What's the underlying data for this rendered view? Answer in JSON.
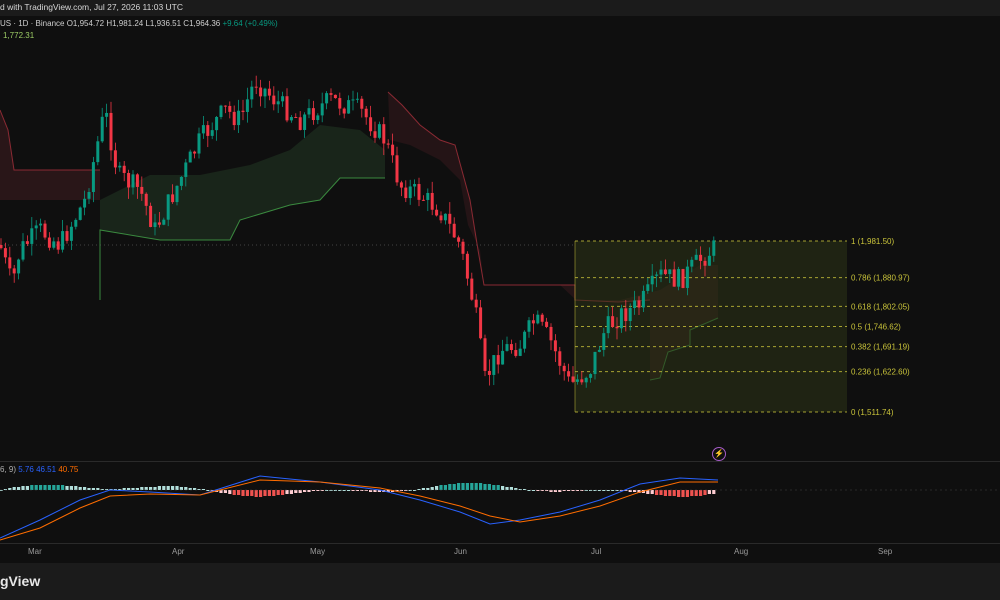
{
  "header": {
    "title_text": "d with TradingView.com, Jul 27, 2026 11:03 UTC"
  },
  "legend": {
    "symbol": "US · 1D · Binance",
    "open": "O1,954.72",
    "high": "H1,981.24",
    "low": "L1,936.51",
    "close": "C1,964.36",
    "change": "+9.64 (+0.49%)",
    "indicator_value": "1,772.31"
  },
  "macd_legend": {
    "params": "6, 9)",
    "macd": "5.76",
    "signal": "46.51",
    "hist": "40.75"
  },
  "fib_labels": [
    "1 (1,981.50)",
    "0.786 (1,880.97)",
    "0.618 (1,802.05)",
    "0.5 (1,746.62)",
    "0.382 (1,691.19)",
    "0.236 (1,622.60)",
    "0 (1,511.74)"
  ],
  "time_axis": [
    "Mar",
    "Apr",
    "May",
    "Jun",
    "Jul",
    "Aug",
    "Sep"
  ],
  "footer": {
    "brand": "gView"
  },
  "colors": {
    "up": "#089981",
    "down": "#f23645",
    "fib": "#c9c33a",
    "fib_fill": "#2e3418",
    "macd_line": "#2962ff",
    "signal_line": "#ff6d00",
    "bg": "#0f0f0f"
  },
  "icons": {
    "alert": "lightning-alert-icon"
  }
}
